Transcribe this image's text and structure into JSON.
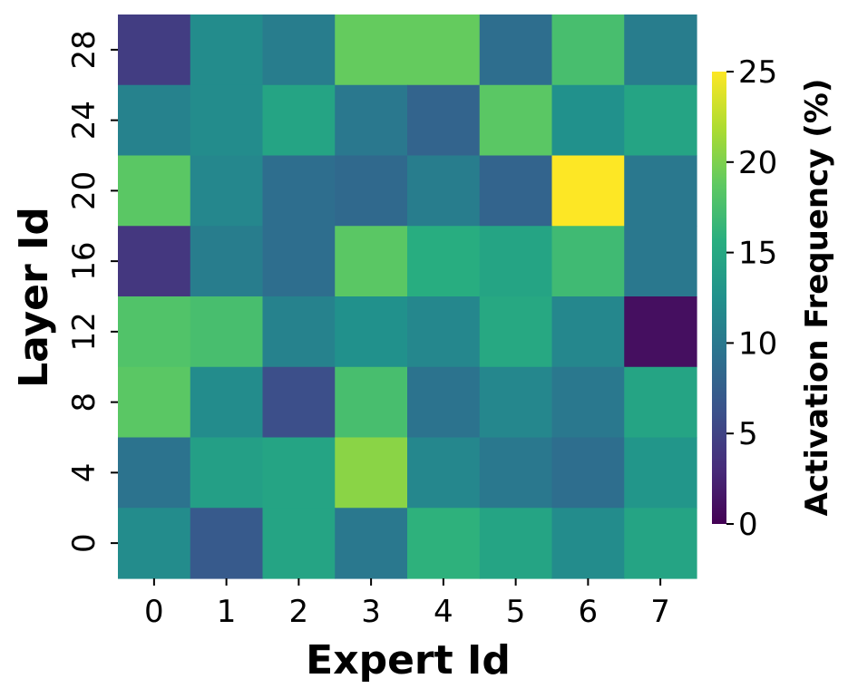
{
  "chart_data": {
    "type": "heatmap",
    "xlabel": "Expert Id",
    "ylabel": "Layer Id",
    "x_categories": [
      "0",
      "1",
      "2",
      "3",
      "4",
      "5",
      "6",
      "7"
    ],
    "y_categories": [
      "28",
      "24",
      "20",
      "16",
      "12",
      "8",
      "4",
      "0"
    ],
    "values": [
      [
        4.5,
        12.0,
        10.5,
        19.0,
        19.0,
        9.0,
        17.5,
        10.5
      ],
      [
        11.0,
        12.0,
        14.5,
        10.0,
        8.0,
        18.5,
        12.5,
        14.5
      ],
      [
        18.5,
        11.5,
        9.0,
        8.5,
        10.5,
        8.0,
        25.0,
        10.0
      ],
      [
        4.0,
        10.5,
        9.0,
        18.5,
        15.5,
        14.5,
        17.0,
        10.0
      ],
      [
        18.0,
        17.5,
        11.0,
        12.5,
        11.5,
        15.0,
        11.5,
        1.0
      ],
      [
        18.5,
        12.0,
        6.0,
        17.5,
        9.5,
        11.5,
        10.0,
        14.5
      ],
      [
        9.5,
        14.0,
        14.5,
        20.5,
        11.5,
        10.0,
        9.0,
        13.0
      ],
      [
        12.0,
        7.0,
        14.5,
        10.0,
        16.0,
        14.5,
        12.0,
        14.5
      ]
    ],
    "colorbar": {
      "label": "Activation Frequency (%)",
      "range": [
        0,
        25
      ],
      "ticks": [
        "0",
        "5",
        "10",
        "15",
        "20",
        "25"
      ],
      "colormap": "viridis"
    }
  }
}
